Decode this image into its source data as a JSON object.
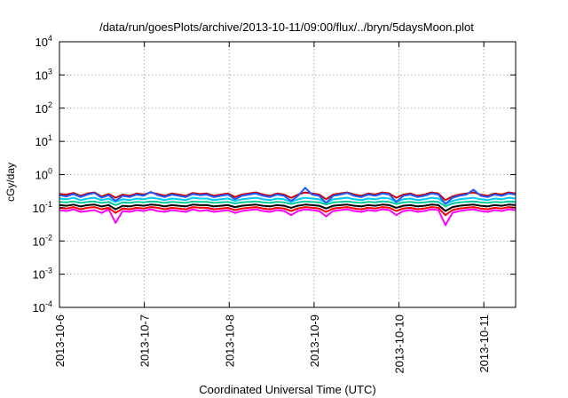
{
  "chart_data": {
    "type": "line",
    "title": "/data/run/goesPlots/archive/2013-10-11/09:00/flux/../bryn/5daysMoon.plot",
    "xlabel": "Coordinated Universal Time (UTC)",
    "ylabel": "cGy/day",
    "yscale": "log",
    "ylim_exponents": [
      -4,
      4
    ],
    "ytick_base": "10",
    "ytick_exponents": [
      "-4",
      "-3",
      "-2",
      "-1",
      "0",
      "1",
      "2",
      "3",
      "4"
    ],
    "xlim": [
      "2013-10-06",
      "2013-10-11 09:00"
    ],
    "xticks": [
      "2013-10-6",
      "2013-10-7",
      "2013-10-8",
      "2013-10-9",
      "2013-10-10",
      "2013-10-11"
    ],
    "grid": true,
    "series": [
      {
        "color": "#ff00ff",
        "values": [
          0.085,
          0.08,
          0.09,
          0.075,
          0.08,
          0.085,
          0.07,
          0.09,
          0.035,
          0.08,
          0.075,
          0.085,
          0.08,
          0.09,
          0.08,
          0.075,
          0.085,
          0.08,
          0.075,
          0.09,
          0.08,
          0.085,
          0.075,
          0.08,
          0.085,
          0.07,
          0.08,
          0.085,
          0.09,
          0.08,
          0.075,
          0.085,
          0.08,
          0.06,
          0.08,
          0.09,
          0.085,
          0.08,
          0.055,
          0.08,
          0.085,
          0.09,
          0.08,
          0.075,
          0.085,
          0.08,
          0.09,
          0.085,
          0.06,
          0.08,
          0.085,
          0.075,
          0.08,
          0.09,
          0.085,
          0.03,
          0.07,
          0.08,
          0.085,
          0.09,
          0.08,
          0.075,
          0.085,
          0.08,
          0.09,
          0.085
        ]
      },
      {
        "color": "#ff0000",
        "values": [
          0.1,
          0.095,
          0.105,
          0.09,
          0.1,
          0.105,
          0.09,
          0.1,
          0.07,
          0.095,
          0.09,
          0.1,
          0.095,
          0.105,
          0.1,
          0.09,
          0.1,
          0.095,
          0.09,
          0.105,
          0.1,
          0.1,
          0.09,
          0.095,
          0.1,
          0.085,
          0.095,
          0.1,
          0.105,
          0.095,
          0.09,
          0.1,
          0.095,
          0.08,
          0.095,
          0.105,
          0.1,
          0.095,
          0.075,
          0.095,
          0.1,
          0.105,
          0.095,
          0.09,
          0.1,
          0.095,
          0.105,
          0.1,
          0.08,
          0.095,
          0.1,
          0.09,
          0.095,
          0.105,
          0.1,
          0.06,
          0.085,
          0.095,
          0.1,
          0.105,
          0.095,
          0.09,
          0.1,
          0.095,
          0.105,
          0.1
        ]
      },
      {
        "color": "#000000",
        "values": [
          0.12,
          0.115,
          0.125,
          0.11,
          0.12,
          0.125,
          0.11,
          0.12,
          0.09,
          0.115,
          0.11,
          0.12,
          0.115,
          0.125,
          0.12,
          0.11,
          0.12,
          0.115,
          0.11,
          0.125,
          0.12,
          0.12,
          0.11,
          0.115,
          0.12,
          0.105,
          0.115,
          0.12,
          0.125,
          0.115,
          0.11,
          0.12,
          0.115,
          0.1,
          0.115,
          0.125,
          0.12,
          0.115,
          0.095,
          0.115,
          0.12,
          0.125,
          0.115,
          0.11,
          0.12,
          0.115,
          0.125,
          0.12,
          0.1,
          0.115,
          0.12,
          0.11,
          0.115,
          0.125,
          0.12,
          0.08,
          0.105,
          0.115,
          0.12,
          0.125,
          0.115,
          0.11,
          0.12,
          0.115,
          0.125,
          0.12
        ]
      },
      {
        "color": "#00c8a0",
        "values": [
          0.15,
          0.145,
          0.155,
          0.14,
          0.15,
          0.155,
          0.14,
          0.15,
          0.12,
          0.145,
          0.14,
          0.15,
          0.145,
          0.155,
          0.15,
          0.14,
          0.15,
          0.145,
          0.14,
          0.155,
          0.15,
          0.15,
          0.14,
          0.145,
          0.15,
          0.135,
          0.145,
          0.15,
          0.155,
          0.145,
          0.14,
          0.15,
          0.145,
          0.13,
          0.145,
          0.155,
          0.15,
          0.145,
          0.125,
          0.145,
          0.15,
          0.155,
          0.145,
          0.14,
          0.15,
          0.145,
          0.155,
          0.15,
          0.13,
          0.145,
          0.15,
          0.14,
          0.145,
          0.155,
          0.15,
          0.11,
          0.135,
          0.145,
          0.15,
          0.155,
          0.145,
          0.14,
          0.15,
          0.145,
          0.155,
          0.15
        ]
      },
      {
        "color": "#00c8ff",
        "values": [
          0.19,
          0.18,
          0.2,
          0.17,
          0.19,
          0.2,
          0.17,
          0.19,
          0.15,
          0.18,
          0.17,
          0.19,
          0.18,
          0.2,
          0.19,
          0.17,
          0.19,
          0.18,
          0.17,
          0.2,
          0.19,
          0.19,
          0.17,
          0.18,
          0.19,
          0.16,
          0.18,
          0.19,
          0.2,
          0.18,
          0.17,
          0.19,
          0.18,
          0.15,
          0.18,
          0.2,
          0.19,
          0.18,
          0.14,
          0.18,
          0.19,
          0.2,
          0.18,
          0.17,
          0.19,
          0.18,
          0.2,
          0.19,
          0.15,
          0.18,
          0.19,
          0.17,
          0.18,
          0.2,
          0.19,
          0.13,
          0.16,
          0.18,
          0.19,
          0.2,
          0.18,
          0.17,
          0.19,
          0.18,
          0.2,
          0.19
        ]
      },
      {
        "color": "#cc0000",
        "values": [
          0.26,
          0.25,
          0.28,
          0.23,
          0.27,
          0.29,
          0.22,
          0.26,
          0.2,
          0.25,
          0.23,
          0.27,
          0.25,
          0.29,
          0.26,
          0.23,
          0.27,
          0.25,
          0.23,
          0.28,
          0.26,
          0.27,
          0.23,
          0.25,
          0.27,
          0.21,
          0.25,
          0.27,
          0.29,
          0.25,
          0.23,
          0.27,
          0.25,
          0.2,
          0.25,
          0.29,
          0.27,
          0.25,
          0.18,
          0.25,
          0.27,
          0.29,
          0.25,
          0.23,
          0.27,
          0.25,
          0.29,
          0.27,
          0.2,
          0.25,
          0.27,
          0.23,
          0.25,
          0.29,
          0.27,
          0.17,
          0.22,
          0.25,
          0.27,
          0.29,
          0.25,
          0.23,
          0.27,
          0.25,
          0.29,
          0.27
        ]
      },
      {
        "color": "#1e5aff",
        "values": [
          0.24,
          0.22,
          0.26,
          0.21,
          0.25,
          0.28,
          0.2,
          0.24,
          0.16,
          0.23,
          0.21,
          0.25,
          0.23,
          0.3,
          0.24,
          0.21,
          0.25,
          0.23,
          0.21,
          0.26,
          0.24,
          0.25,
          0.21,
          0.23,
          0.25,
          0.18,
          0.23,
          0.25,
          0.27,
          0.23,
          0.21,
          0.25,
          0.23,
          0.16,
          0.23,
          0.4,
          0.25,
          0.23,
          0.14,
          0.23,
          0.25,
          0.28,
          0.23,
          0.21,
          0.25,
          0.23,
          0.27,
          0.25,
          0.15,
          0.23,
          0.25,
          0.21,
          0.23,
          0.27,
          0.25,
          0.13,
          0.2,
          0.23,
          0.25,
          0.35,
          0.23,
          0.21,
          0.25,
          0.23,
          0.27,
          0.25
        ]
      }
    ]
  }
}
